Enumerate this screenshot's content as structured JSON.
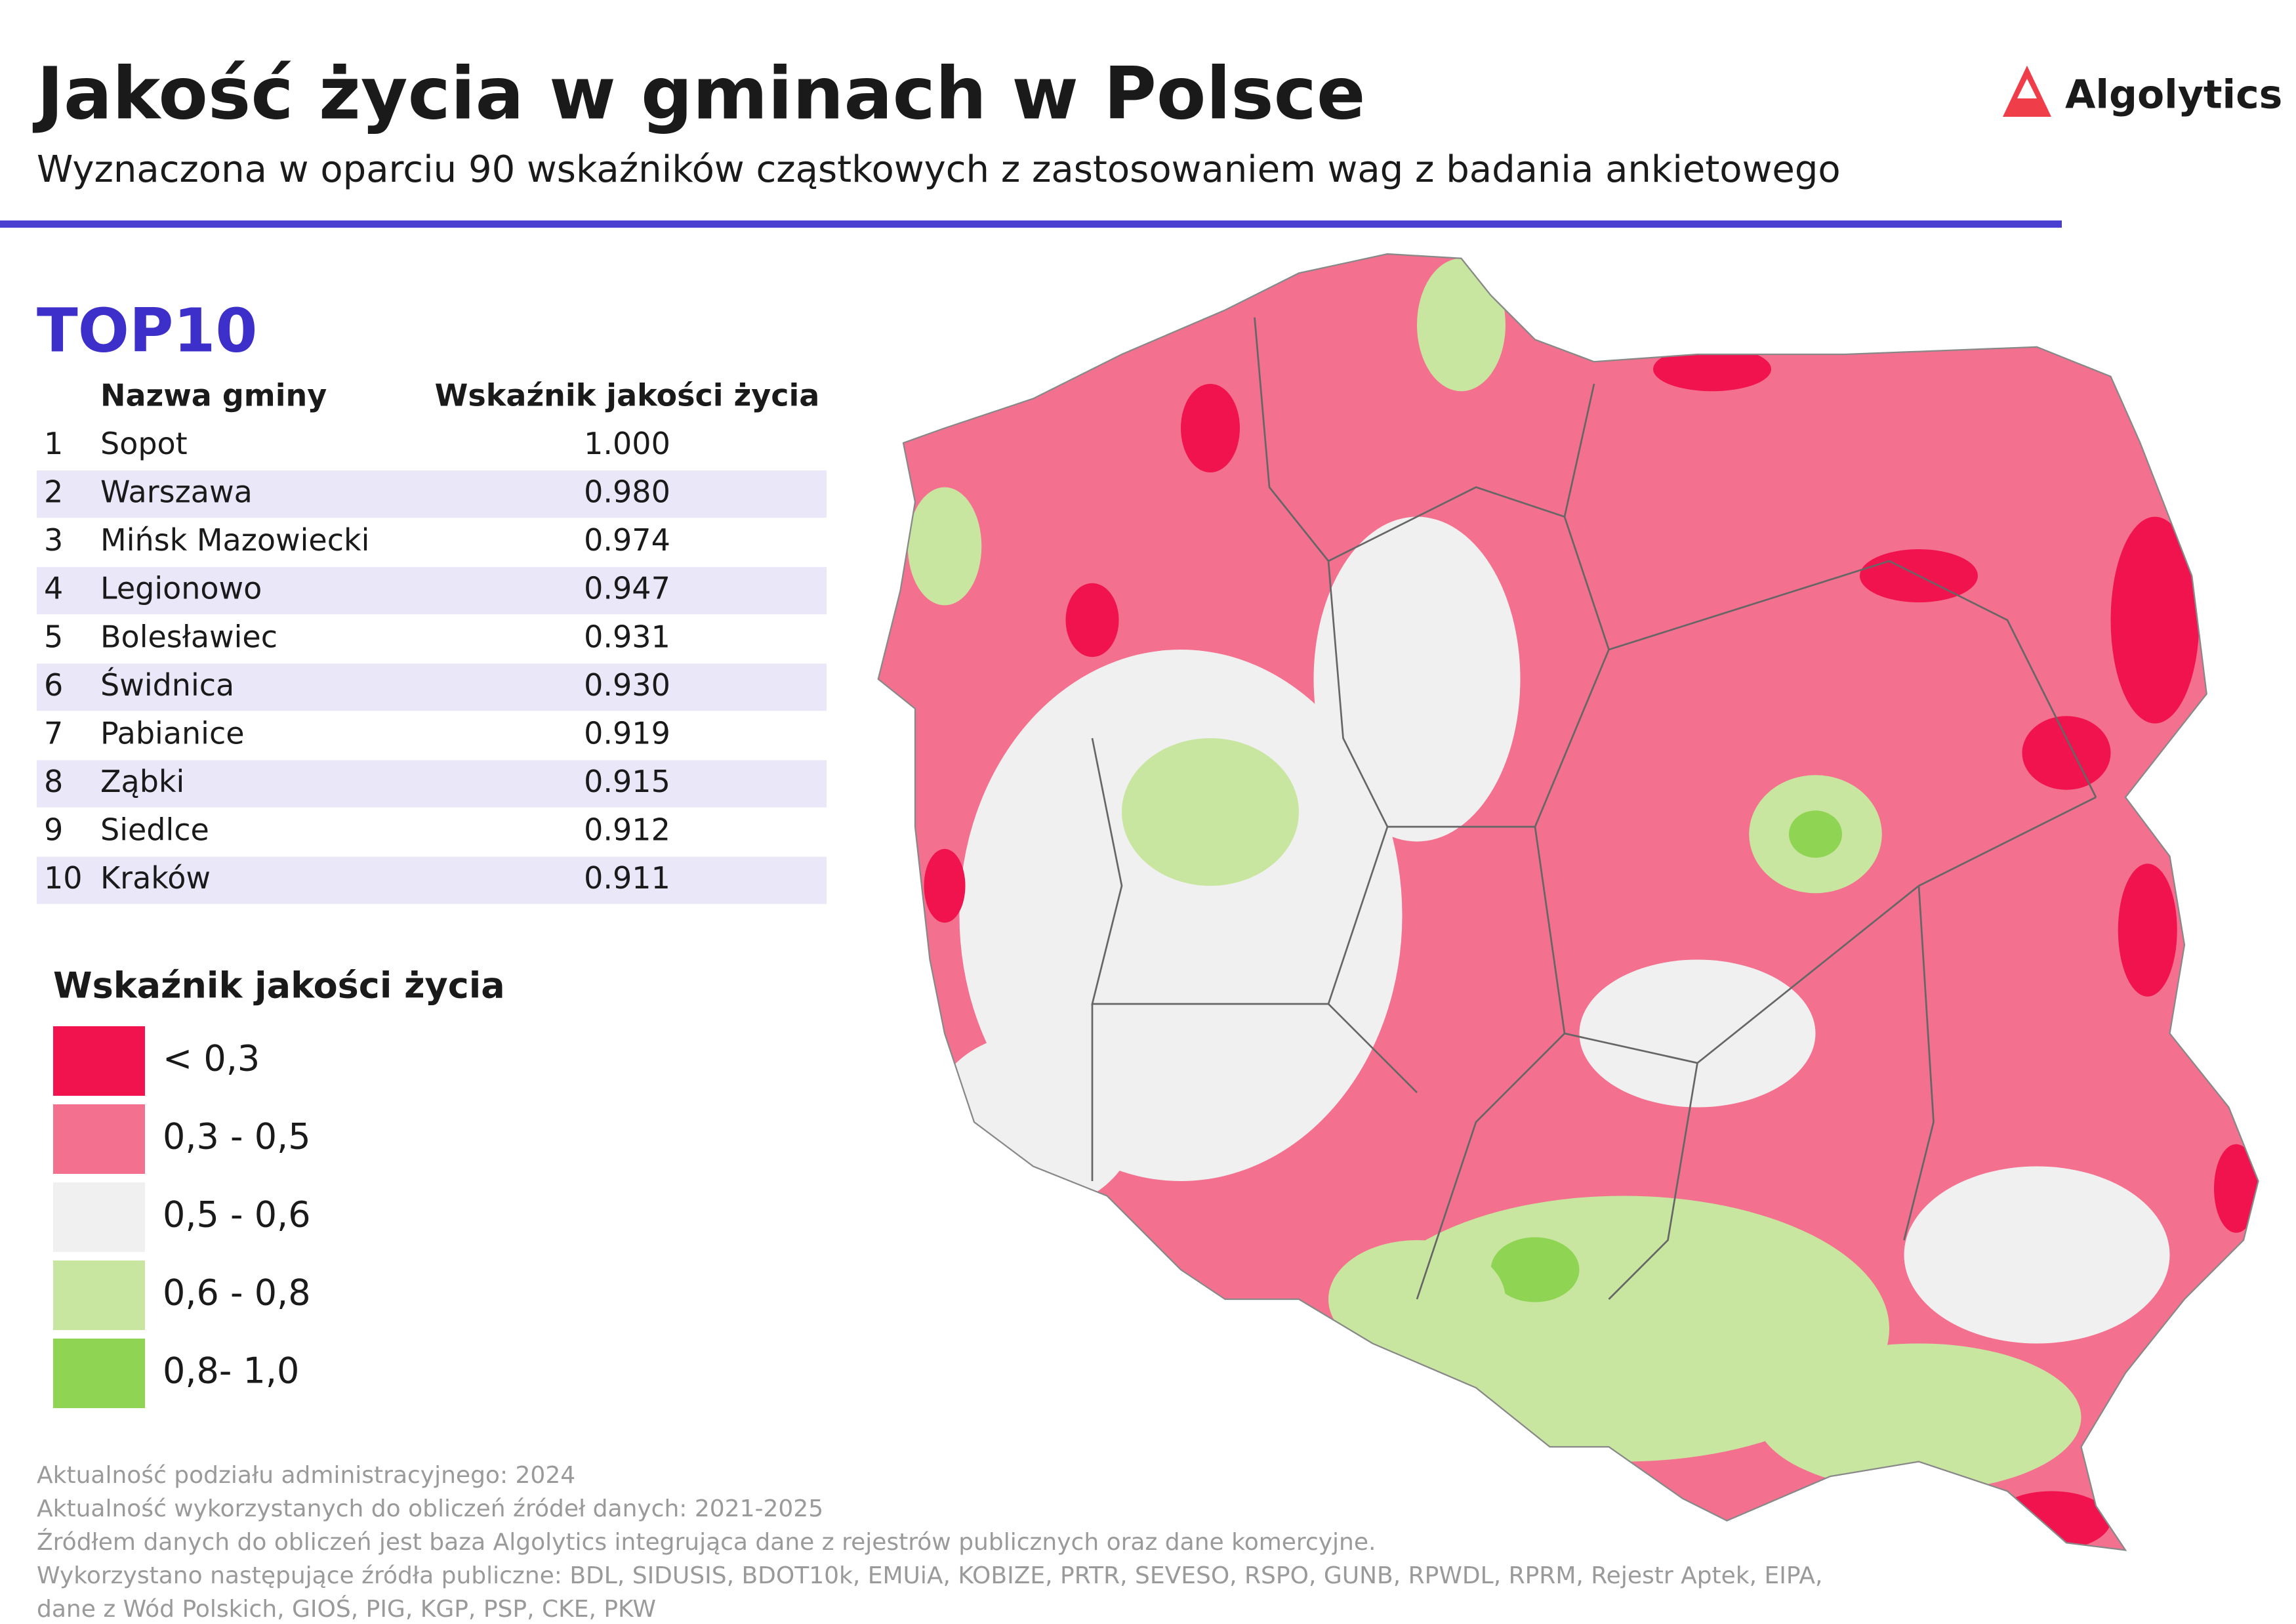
{
  "header": {
    "title": "Jakość życia w gminach w Polsce",
    "subtitle": "Wyznaczona w oparciu 90 wskaźników cząstkowych z zastosowaniem wag z badania ankietowego",
    "logo": "Algolytics"
  },
  "ranking": {
    "title": "TOP10",
    "columns": [
      "Nazwa gminy",
      "Wskaźnik jakości życia"
    ],
    "rows": [
      [
        1,
        "Sopot",
        "1.000"
      ],
      [
        2,
        "Warszawa",
        "0.980"
      ],
      [
        3,
        "Mińsk Mazowiecki",
        "0.974"
      ],
      [
        4,
        "Legionowo",
        "0.947"
      ],
      [
        5,
        "Bolesławiec",
        "0.931"
      ],
      [
        6,
        "Świdnica",
        "0.930"
      ],
      [
        7,
        "Pabianice",
        "0.919"
      ],
      [
        8,
        "Ząbki",
        "0.915"
      ],
      [
        9,
        "Siedlce",
        "0.912"
      ],
      [
        10,
        "Kraków",
        "0.911"
      ]
    ]
  },
  "legend": {
    "title": "Wskaźnik jakości życia",
    "items": [
      {
        "label": "< 0,3",
        "color": "#f0134d"
      },
      {
        "label": "0,3 - 0,5",
        "color": "#f4708f"
      },
      {
        "label": "0,5 - 0,6",
        "color": "#f0f0f0"
      },
      {
        "label": "0,6 - 0,8",
        "color": "#c8e6a0"
      },
      {
        "label": "0,8- 1,0",
        "color": "#8fd452"
      }
    ]
  },
  "footer": {
    "notes": [
      "Aktualność podziału administracyjnego: 2024",
      "Aktualność wykorzystanych do obliczeń źródeł danych: 2021-2025",
      "Źródłem danych do obliczeń jest baza Algolytics integrująca dane z rejestrów publicznych oraz dane komercyjne.",
      "Wykorzystano następujące źródła publiczne: BDL, SIDUSIS, BDOT10k, EMUiA, KOBIZE, PRTR, SEVESO, RSPO, GUNB, RPWDL, RPRM, Rejestr Aptek, EIPA,",
      "dane z Wód Polskich, GIOŚ, PIG, KGP, PSP, CKE, PKW"
    ]
  }
}
